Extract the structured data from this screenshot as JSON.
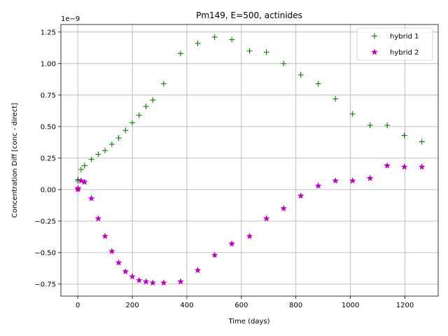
{
  "chart_data": {
    "type": "scatter",
    "title": "Pm149, E=500, actinides",
    "xlabel": "Time (days)",
    "ylabel": "Concentration Diff [conc - direct]",
    "y_scale_label": "1e−9",
    "y_multiplier": 1e-09,
    "xlim": [
      -62,
      1322
    ],
    "ylim": [
      -0.845,
      1.31
    ],
    "x_ticks": [
      0,
      200,
      400,
      600,
      800,
      1000,
      1200
    ],
    "x_tick_labels": [
      "0",
      "200",
      "400",
      "600",
      "800",
      "1000",
      "1200"
    ],
    "y_ticks": [
      -0.75,
      -0.5,
      -0.25,
      0.0,
      0.25,
      0.5,
      0.75,
      1.0,
      1.25
    ],
    "y_tick_labels": [
      "−0.75",
      "−0.50",
      "−0.25",
      "0.00",
      "0.25",
      "0.50",
      "0.75",
      "1.00",
      "1.25"
    ],
    "grid": true,
    "legend_position": "top-right",
    "series": [
      {
        "name": "hybrid 1",
        "marker": "plus",
        "color": "#008000",
        "x": [
          0,
          1,
          12,
          25,
          50,
          75,
          100,
          125,
          150,
          175,
          200,
          225,
          250,
          275,
          315,
          377,
          440,
          502,
          565,
          630,
          692,
          755,
          818,
          882,
          945,
          1008,
          1072,
          1135,
          1198,
          1262
        ],
        "y": [
          0.07,
          0.08,
          0.16,
          0.19,
          0.24,
          0.28,
          0.31,
          0.36,
          0.41,
          0.47,
          0.53,
          0.59,
          0.66,
          0.71,
          0.84,
          1.08,
          1.16,
          1.21,
          1.19,
          1.1,
          1.09,
          1.0,
          0.91,
          0.84,
          0.72,
          0.6,
          0.51,
          0.51,
          0.43,
          0.38
        ]
      },
      {
        "name": "hybrid 2",
        "marker": "star",
        "color": "#bf00bf",
        "x": [
          0,
          1,
          12,
          25,
          50,
          75,
          100,
          125,
          150,
          175,
          200,
          225,
          250,
          275,
          315,
          377,
          440,
          502,
          565,
          630,
          692,
          755,
          818,
          882,
          945,
          1008,
          1072,
          1135,
          1198,
          1262
        ],
        "y": [
          0.0,
          0.01,
          0.07,
          0.06,
          -0.07,
          -0.23,
          -0.37,
          -0.49,
          -0.58,
          -0.65,
          -0.69,
          -0.72,
          -0.73,
          -0.74,
          -0.74,
          -0.73,
          -0.64,
          -0.52,
          -0.43,
          -0.37,
          -0.23,
          -0.15,
          -0.05,
          0.03,
          0.07,
          0.07,
          0.09,
          0.19,
          0.18,
          0.18
        ]
      }
    ]
  }
}
